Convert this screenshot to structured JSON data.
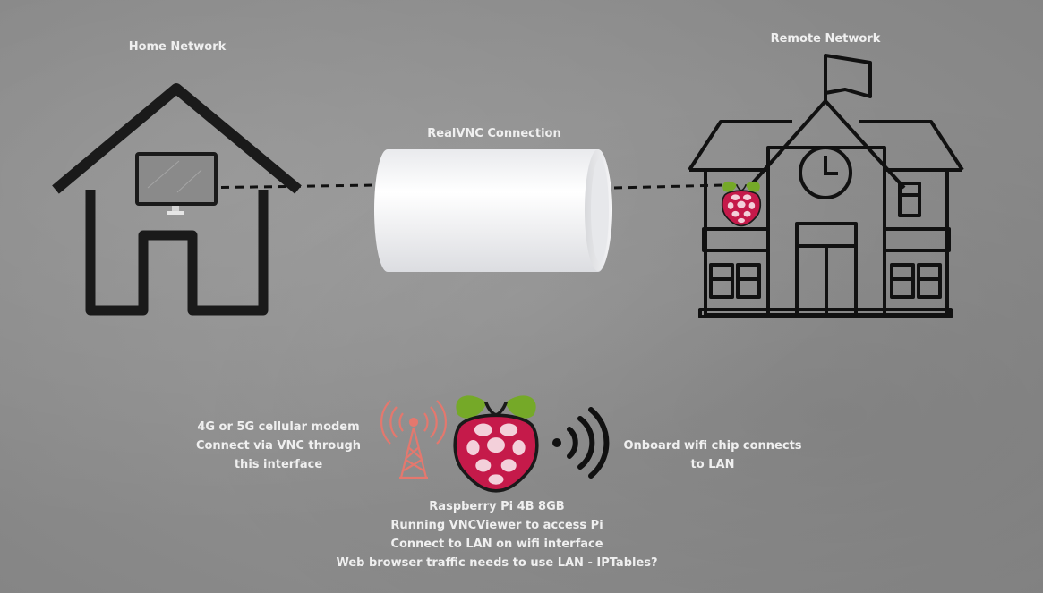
{
  "diagram": {
    "home_title": "Home Network",
    "remote_title": "Remote Network",
    "connection_title": "RealVNC Connection",
    "modem_lines": [
      "4G or 5G cellular modem",
      "Connect via VNC through",
      "this interface"
    ],
    "wifi_lines": [
      "Onboard wifi chip connects",
      "to LAN"
    ],
    "pi_lines": [
      "Raspberry Pi 4B 8GB",
      "Running VNCViewer to access Pi",
      "Connect to LAN on wifi interface",
      "Web browser traffic needs to use LAN - IPTables?"
    ]
  },
  "colors": {
    "background": "#8f8f8f",
    "text": "#efefef",
    "line": "#111111",
    "tower": "#e4786e",
    "raspberry": "#c51a4a",
    "leaf": "#75a928",
    "tunnel": "#f2f3f5"
  },
  "icons": [
    "house-icon",
    "monitor-icon",
    "school-building-icon",
    "flag-icon",
    "clock-icon",
    "tunnel-icon",
    "cell-tower-icon",
    "raspberry-pi-logo-icon",
    "wifi-signal-icon"
  ]
}
